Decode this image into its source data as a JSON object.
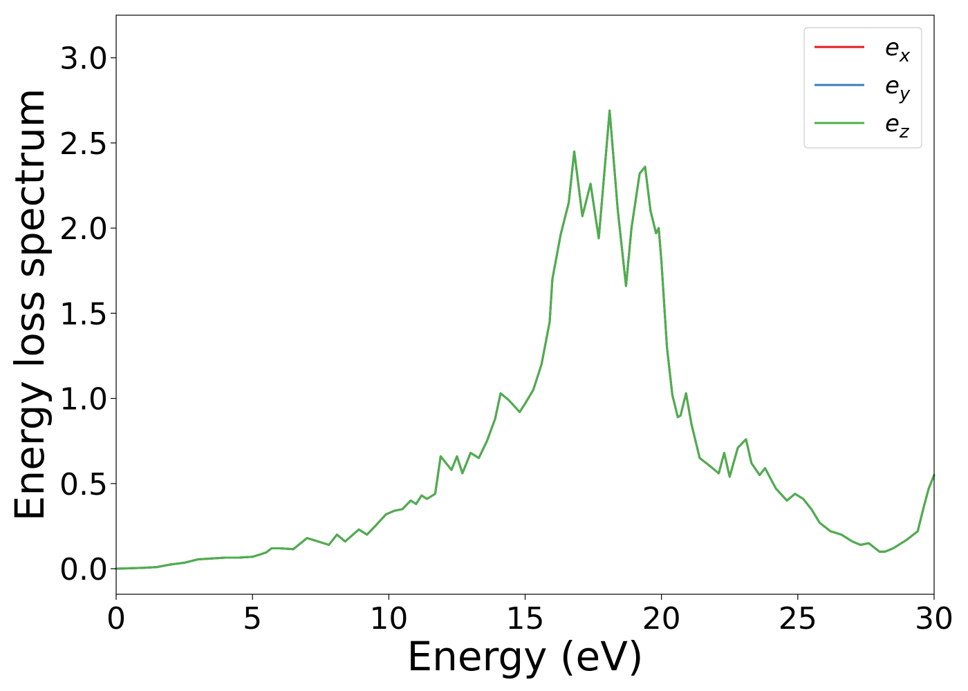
{
  "chart_data": {
    "type": "line",
    "xlabel": "Energy (eV)",
    "ylabel": "Energy loss spectrum",
    "xlim": [
      0,
      30
    ],
    "ylim": [
      -0.15,
      3.25
    ],
    "xticks": [
      0,
      5,
      10,
      15,
      20,
      25,
      30
    ],
    "yticks": [
      0.0,
      0.5,
      1.0,
      1.5,
      2.0,
      2.5,
      3.0
    ],
    "xtick_labels": [
      "0",
      "5",
      "10",
      "15",
      "20",
      "25",
      "30"
    ],
    "ytick_labels": [
      "0.0",
      "0.5",
      "1.0",
      "1.5",
      "2.0",
      "2.5",
      "3.0"
    ],
    "grid": false,
    "legend_position": "top-right",
    "series": [
      {
        "name": "e_x",
        "label_base": "e",
        "label_sub": "x",
        "color": "#e41a1c",
        "x": [
          0,
          1,
          1.5,
          2,
          2.5,
          3,
          3.5,
          4,
          4.5,
          5,
          5.5,
          5.7,
          6,
          6.5,
          7,
          7.2,
          7.8,
          8.1,
          8.4,
          8.9,
          9.2,
          9.5,
          9.9,
          10.2,
          10.5,
          10.8,
          11,
          11.2,
          11.4,
          11.7,
          11.9,
          12.1,
          12.3,
          12.5,
          12.7,
          13,
          13.3,
          13.6,
          13.9,
          14.1,
          14.4,
          14.8,
          15,
          15.3,
          15.6,
          15.9,
          16,
          16.3,
          16.6,
          16.8,
          17.1,
          17.4,
          17.7,
          18.1,
          18.4,
          18.7,
          18.9,
          19.2,
          19.4,
          19.6,
          19.8,
          19.9,
          20,
          20.2,
          20.4,
          20.6,
          20.7,
          20.9,
          21.1,
          21.4,
          21.8,
          22.1,
          22.3,
          22.5,
          22.8,
          23.1,
          23.3,
          23.6,
          23.8,
          24.2,
          24.6,
          24.9,
          25.2,
          25.5,
          25.8,
          26.2,
          26.6,
          27,
          27.3,
          27.6,
          28,
          28.2,
          28.5,
          29,
          29.4,
          29.6,
          29.8,
          30
        ],
        "y": [
          0.0,
          0.005,
          0.01,
          0.025,
          0.035,
          0.055,
          0.06,
          0.065,
          0.065,
          0.07,
          0.095,
          0.12,
          0.12,
          0.115,
          0.18,
          0.17,
          0.14,
          0.2,
          0.16,
          0.23,
          0.2,
          0.25,
          0.32,
          0.34,
          0.35,
          0.4,
          0.38,
          0.43,
          0.41,
          0.44,
          0.66,
          0.62,
          0.58,
          0.66,
          0.56,
          0.68,
          0.65,
          0.75,
          0.88,
          1.03,
          0.99,
          0.92,
          0.97,
          1.05,
          1.2,
          1.45,
          1.7,
          1.96,
          2.15,
          2.45,
          2.07,
          2.26,
          1.94,
          2.69,
          2.1,
          1.66,
          2.0,
          2.32,
          2.36,
          2.1,
          1.97,
          2.0,
          1.8,
          1.3,
          1.02,
          0.89,
          0.9,
          1.03,
          0.85,
          0.65,
          0.6,
          0.56,
          0.68,
          0.54,
          0.71,
          0.76,
          0.62,
          0.55,
          0.59,
          0.47,
          0.4,
          0.44,
          0.41,
          0.35,
          0.27,
          0.22,
          0.2,
          0.16,
          0.14,
          0.15,
          0.1,
          0.1,
          0.12,
          0.17,
          0.22,
          0.35,
          0.47,
          0.55
        ]
      },
      {
        "name": "e_y",
        "label_base": "e",
        "label_sub": "y",
        "color": "#377eb8",
        "x": [
          0,
          1,
          1.5,
          2,
          2.5,
          3,
          3.5,
          4,
          4.5,
          5,
          5.5,
          5.7,
          6,
          6.5,
          7,
          7.2,
          7.8,
          8.1,
          8.4,
          8.9,
          9.2,
          9.5,
          9.9,
          10.2,
          10.5,
          10.8,
          11,
          11.2,
          11.4,
          11.7,
          11.9,
          12.1,
          12.3,
          12.5,
          12.7,
          13,
          13.3,
          13.6,
          13.9,
          14.1,
          14.4,
          14.8,
          15,
          15.3,
          15.6,
          15.9,
          16,
          16.3,
          16.6,
          16.8,
          17.1,
          17.4,
          17.7,
          18.1,
          18.4,
          18.7,
          18.9,
          19.2,
          19.4,
          19.6,
          19.8,
          19.9,
          20,
          20.2,
          20.4,
          20.6,
          20.7,
          20.9,
          21.1,
          21.4,
          21.8,
          22.1,
          22.3,
          22.5,
          22.8,
          23.1,
          23.3,
          23.6,
          23.8,
          24.2,
          24.6,
          24.9,
          25.2,
          25.5,
          25.8,
          26.2,
          26.6,
          27,
          27.3,
          27.6,
          28,
          28.2,
          28.5,
          29,
          29.4,
          29.6,
          29.8,
          30
        ],
        "y": [
          0.0,
          0.005,
          0.01,
          0.025,
          0.035,
          0.055,
          0.06,
          0.065,
          0.065,
          0.07,
          0.095,
          0.12,
          0.12,
          0.115,
          0.18,
          0.17,
          0.14,
          0.2,
          0.16,
          0.23,
          0.2,
          0.25,
          0.32,
          0.34,
          0.35,
          0.4,
          0.38,
          0.43,
          0.41,
          0.44,
          0.66,
          0.62,
          0.58,
          0.66,
          0.56,
          0.68,
          0.65,
          0.75,
          0.88,
          1.03,
          0.99,
          0.92,
          0.97,
          1.05,
          1.2,
          1.45,
          1.7,
          1.96,
          2.15,
          2.45,
          2.07,
          2.26,
          1.94,
          2.69,
          2.1,
          1.66,
          2.0,
          2.32,
          2.36,
          2.1,
          1.97,
          2.0,
          1.8,
          1.3,
          1.02,
          0.89,
          0.9,
          1.03,
          0.85,
          0.65,
          0.6,
          0.56,
          0.68,
          0.54,
          0.71,
          0.76,
          0.62,
          0.55,
          0.59,
          0.47,
          0.4,
          0.44,
          0.41,
          0.35,
          0.27,
          0.22,
          0.2,
          0.16,
          0.14,
          0.15,
          0.1,
          0.1,
          0.12,
          0.17,
          0.22,
          0.35,
          0.47,
          0.55
        ]
      },
      {
        "name": "e_z",
        "label_base": "e",
        "label_sub": "z",
        "color": "#4daf4a",
        "x": [
          0,
          1,
          1.5,
          2,
          2.5,
          3,
          3.5,
          4,
          4.5,
          5,
          5.5,
          5.7,
          6,
          6.5,
          7,
          7.2,
          7.8,
          8.1,
          8.4,
          8.9,
          9.2,
          9.5,
          9.9,
          10.2,
          10.5,
          10.8,
          11,
          11.2,
          11.4,
          11.7,
          11.9,
          12.1,
          12.3,
          12.5,
          12.7,
          13,
          13.3,
          13.6,
          13.9,
          14.1,
          14.4,
          14.8,
          15,
          15.3,
          15.6,
          15.9,
          16,
          16.3,
          16.6,
          16.8,
          17.1,
          17.4,
          17.7,
          18.1,
          18.4,
          18.7,
          18.9,
          19.2,
          19.4,
          19.6,
          19.8,
          19.9,
          20,
          20.2,
          20.4,
          20.6,
          20.7,
          20.9,
          21.1,
          21.4,
          21.8,
          22.1,
          22.3,
          22.5,
          22.8,
          23.1,
          23.3,
          23.6,
          23.8,
          24.2,
          24.6,
          24.9,
          25.2,
          25.5,
          25.8,
          26.2,
          26.6,
          27,
          27.3,
          27.6,
          28,
          28.2,
          28.5,
          29,
          29.4,
          29.6,
          29.8,
          30
        ],
        "y": [
          0.0,
          0.005,
          0.01,
          0.025,
          0.035,
          0.055,
          0.06,
          0.065,
          0.065,
          0.07,
          0.095,
          0.12,
          0.12,
          0.115,
          0.18,
          0.17,
          0.14,
          0.2,
          0.16,
          0.23,
          0.2,
          0.25,
          0.32,
          0.34,
          0.35,
          0.4,
          0.38,
          0.43,
          0.41,
          0.44,
          0.66,
          0.62,
          0.58,
          0.66,
          0.56,
          0.68,
          0.65,
          0.75,
          0.88,
          1.03,
          0.99,
          0.92,
          0.97,
          1.05,
          1.2,
          1.45,
          1.7,
          1.96,
          2.15,
          2.45,
          2.07,
          2.26,
          1.94,
          2.69,
          2.1,
          1.66,
          2.0,
          2.32,
          2.36,
          2.1,
          1.97,
          2.0,
          1.8,
          1.3,
          1.02,
          0.89,
          0.9,
          1.03,
          0.85,
          0.65,
          0.6,
          0.56,
          0.68,
          0.54,
          0.71,
          0.76,
          0.62,
          0.55,
          0.59,
          0.47,
          0.4,
          0.44,
          0.41,
          0.35,
          0.27,
          0.22,
          0.2,
          0.16,
          0.14,
          0.15,
          0.1,
          0.1,
          0.12,
          0.17,
          0.22,
          0.35,
          0.47,
          0.55
        ]
      }
    ]
  }
}
